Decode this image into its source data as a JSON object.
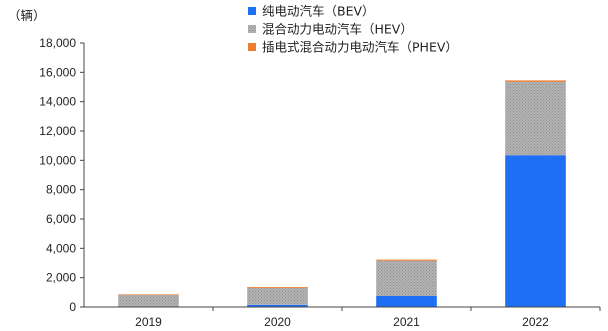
{
  "chart_data": {
    "type": "bar",
    "stacked": true,
    "unit_label": "（辆）",
    "categories": [
      "2019",
      "2020",
      "2021",
      "2022"
    ],
    "series": [
      {
        "name": "纯电动汽车（BEV）",
        "color": "#1f6ff5",
        "values": [
          20,
          150,
          750,
          10350
        ]
      },
      {
        "name": "混合动力电动汽车（HEV）",
        "color": "#a9a9a9",
        "values": [
          800,
          1150,
          2400,
          5000
        ]
      },
      {
        "name": "插电式混合动力电动汽车（PHEV）",
        "color": "#ed7d31",
        "values": [
          40,
          60,
          80,
          100
        ]
      }
    ],
    "ylim": [
      0,
      18000
    ],
    "yticks": [
      0,
      2000,
      4000,
      6000,
      8000,
      10000,
      12000,
      14000,
      16000,
      18000
    ],
    "ytick_labels": [
      "0",
      "2,000",
      "4,000",
      "6,000",
      "8,000",
      "10,000",
      "12,000",
      "14,000",
      "16,000",
      "18,000"
    ],
    "legend_position": "top-center",
    "grid": false
  }
}
